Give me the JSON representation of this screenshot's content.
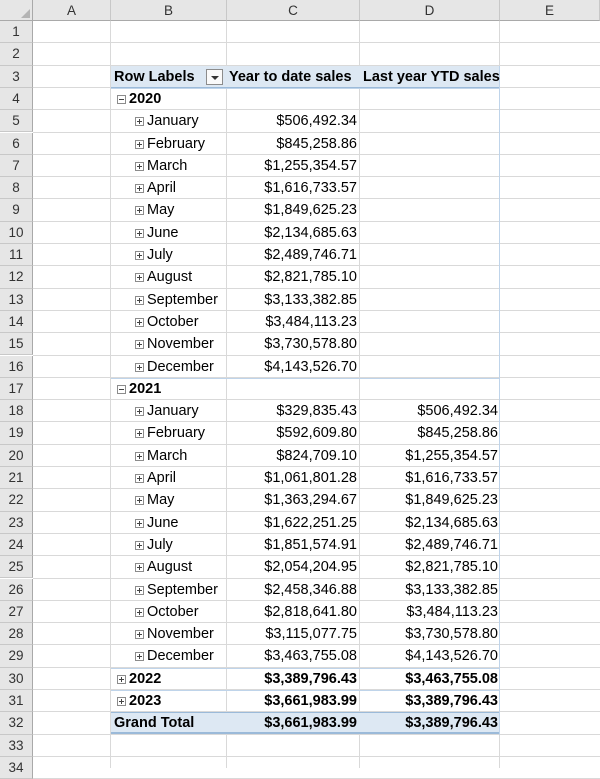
{
  "columns": [
    "A",
    "B",
    "C",
    "D",
    "E"
  ],
  "rows": [
    "1",
    "2",
    "3",
    "4",
    "5",
    "6",
    "7",
    "8",
    "9",
    "10",
    "11",
    "12",
    "13",
    "14",
    "15",
    "16",
    "17",
    "18",
    "19",
    "20",
    "21",
    "22",
    "23",
    "24",
    "25",
    "26",
    "27",
    "28",
    "29",
    "30",
    "31",
    "32",
    "33",
    "34"
  ],
  "pivot": {
    "row_labels": "Row Labels",
    "col_ytd": "Year to date sales",
    "col_last": "Last year YTD sales",
    "grand_total_label": "Grand Total",
    "grand_total_ytd": "$3,661,983.99",
    "grand_total_last": "$3,389,796.43",
    "years": [
      {
        "year": "2020",
        "expanded": true,
        "months": [
          {
            "name": "January",
            "ytd": "$506,492.34",
            "last": ""
          },
          {
            "name": "February",
            "ytd": "$845,258.86",
            "last": ""
          },
          {
            "name": "March",
            "ytd": "$1,255,354.57",
            "last": ""
          },
          {
            "name": "April",
            "ytd": "$1,616,733.57",
            "last": ""
          },
          {
            "name": "May",
            "ytd": "$1,849,625.23",
            "last": ""
          },
          {
            "name": "June",
            "ytd": "$2,134,685.63",
            "last": ""
          },
          {
            "name": "July",
            "ytd": "$2,489,746.71",
            "last": ""
          },
          {
            "name": "August",
            "ytd": "$2,821,785.10",
            "last": ""
          },
          {
            "name": "September",
            "ytd": "$3,133,382.85",
            "last": ""
          },
          {
            "name": "October",
            "ytd": "$3,484,113.23",
            "last": ""
          },
          {
            "name": "November",
            "ytd": "$3,730,578.80",
            "last": ""
          },
          {
            "name": "December",
            "ytd": "$4,143,526.70",
            "last": ""
          }
        ]
      },
      {
        "year": "2021",
        "expanded": true,
        "months": [
          {
            "name": "January",
            "ytd": "$329,835.43",
            "last": "$506,492.34"
          },
          {
            "name": "February",
            "ytd": "$592,609.80",
            "last": "$845,258.86"
          },
          {
            "name": "March",
            "ytd": "$824,709.10",
            "last": "$1,255,354.57"
          },
          {
            "name": "April",
            "ytd": "$1,061,801.28",
            "last": "$1,616,733.57"
          },
          {
            "name": "May",
            "ytd": "$1,363,294.67",
            "last": "$1,849,625.23"
          },
          {
            "name": "June",
            "ytd": "$1,622,251.25",
            "last": "$2,134,685.63"
          },
          {
            "name": "July",
            "ytd": "$1,851,574.91",
            "last": "$2,489,746.71"
          },
          {
            "name": "August",
            "ytd": "$2,054,204.95",
            "last": "$2,821,785.10"
          },
          {
            "name": "September",
            "ytd": "$2,458,346.88",
            "last": "$3,133,382.85"
          },
          {
            "name": "October",
            "ytd": "$2,818,641.80",
            "last": "$3,484,113.23"
          },
          {
            "name": "November",
            "ytd": "$3,115,077.75",
            "last": "$3,730,578.80"
          },
          {
            "name": "December",
            "ytd": "$3,463,755.08",
            "last": "$4,143,526.70"
          }
        ]
      },
      {
        "year": "2022",
        "expanded": false,
        "ytd": "$3,389,796.43",
        "last": "$3,463,755.08",
        "months": []
      },
      {
        "year": "2023",
        "expanded": false,
        "ytd": "$3,661,983.99",
        "last": "$3,389,796.43",
        "months": []
      }
    ]
  },
  "colors": {
    "header_fill": "#dde8f3",
    "header_border": "#9bbad9",
    "grid": "#d9d9d9",
    "heading_bg": "#e6e6e6"
  }
}
